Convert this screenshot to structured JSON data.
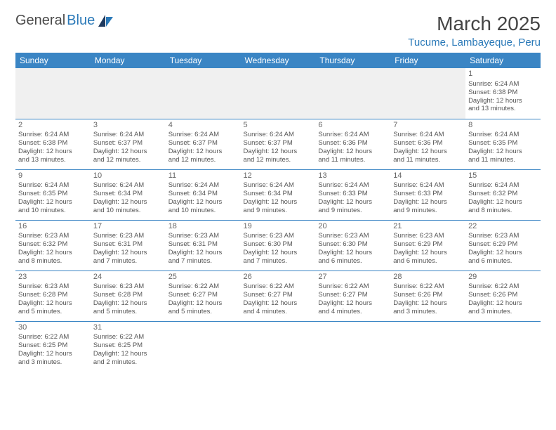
{
  "brand": {
    "name1": "General",
    "name2": "Blue"
  },
  "title": "March 2025",
  "location": "Tucume, Lambayeque, Peru",
  "colors": {
    "header_bg": "#3a85c4",
    "header_text": "#ffffff",
    "accent": "#2a79b8",
    "text": "#555555",
    "daynum": "#666666",
    "blank_bg": "#f0f0f0",
    "rule": "#3a85c4"
  },
  "weekdays": [
    "Sunday",
    "Monday",
    "Tuesday",
    "Wednesday",
    "Thursday",
    "Friday",
    "Saturday"
  ],
  "weeks": [
    [
      null,
      null,
      null,
      null,
      null,
      null,
      {
        "n": "1",
        "sr": "Sunrise: 6:24 AM",
        "ss": "Sunset: 6:38 PM",
        "d1": "Daylight: 12 hours",
        "d2": "and 13 minutes."
      }
    ],
    [
      {
        "n": "2",
        "sr": "Sunrise: 6:24 AM",
        "ss": "Sunset: 6:38 PM",
        "d1": "Daylight: 12 hours",
        "d2": "and 13 minutes."
      },
      {
        "n": "3",
        "sr": "Sunrise: 6:24 AM",
        "ss": "Sunset: 6:37 PM",
        "d1": "Daylight: 12 hours",
        "d2": "and 12 minutes."
      },
      {
        "n": "4",
        "sr": "Sunrise: 6:24 AM",
        "ss": "Sunset: 6:37 PM",
        "d1": "Daylight: 12 hours",
        "d2": "and 12 minutes."
      },
      {
        "n": "5",
        "sr": "Sunrise: 6:24 AM",
        "ss": "Sunset: 6:37 PM",
        "d1": "Daylight: 12 hours",
        "d2": "and 12 minutes."
      },
      {
        "n": "6",
        "sr": "Sunrise: 6:24 AM",
        "ss": "Sunset: 6:36 PM",
        "d1": "Daylight: 12 hours",
        "d2": "and 11 minutes."
      },
      {
        "n": "7",
        "sr": "Sunrise: 6:24 AM",
        "ss": "Sunset: 6:36 PM",
        "d1": "Daylight: 12 hours",
        "d2": "and 11 minutes."
      },
      {
        "n": "8",
        "sr": "Sunrise: 6:24 AM",
        "ss": "Sunset: 6:35 PM",
        "d1": "Daylight: 12 hours",
        "d2": "and 11 minutes."
      }
    ],
    [
      {
        "n": "9",
        "sr": "Sunrise: 6:24 AM",
        "ss": "Sunset: 6:35 PM",
        "d1": "Daylight: 12 hours",
        "d2": "and 10 minutes."
      },
      {
        "n": "10",
        "sr": "Sunrise: 6:24 AM",
        "ss": "Sunset: 6:34 PM",
        "d1": "Daylight: 12 hours",
        "d2": "and 10 minutes."
      },
      {
        "n": "11",
        "sr": "Sunrise: 6:24 AM",
        "ss": "Sunset: 6:34 PM",
        "d1": "Daylight: 12 hours",
        "d2": "and 10 minutes."
      },
      {
        "n": "12",
        "sr": "Sunrise: 6:24 AM",
        "ss": "Sunset: 6:34 PM",
        "d1": "Daylight: 12 hours",
        "d2": "and 9 minutes."
      },
      {
        "n": "13",
        "sr": "Sunrise: 6:24 AM",
        "ss": "Sunset: 6:33 PM",
        "d1": "Daylight: 12 hours",
        "d2": "and 9 minutes."
      },
      {
        "n": "14",
        "sr": "Sunrise: 6:24 AM",
        "ss": "Sunset: 6:33 PM",
        "d1": "Daylight: 12 hours",
        "d2": "and 9 minutes."
      },
      {
        "n": "15",
        "sr": "Sunrise: 6:24 AM",
        "ss": "Sunset: 6:32 PM",
        "d1": "Daylight: 12 hours",
        "d2": "and 8 minutes."
      }
    ],
    [
      {
        "n": "16",
        "sr": "Sunrise: 6:23 AM",
        "ss": "Sunset: 6:32 PM",
        "d1": "Daylight: 12 hours",
        "d2": "and 8 minutes."
      },
      {
        "n": "17",
        "sr": "Sunrise: 6:23 AM",
        "ss": "Sunset: 6:31 PM",
        "d1": "Daylight: 12 hours",
        "d2": "and 7 minutes."
      },
      {
        "n": "18",
        "sr": "Sunrise: 6:23 AM",
        "ss": "Sunset: 6:31 PM",
        "d1": "Daylight: 12 hours",
        "d2": "and 7 minutes."
      },
      {
        "n": "19",
        "sr": "Sunrise: 6:23 AM",
        "ss": "Sunset: 6:30 PM",
        "d1": "Daylight: 12 hours",
        "d2": "and 7 minutes."
      },
      {
        "n": "20",
        "sr": "Sunrise: 6:23 AM",
        "ss": "Sunset: 6:30 PM",
        "d1": "Daylight: 12 hours",
        "d2": "and 6 minutes."
      },
      {
        "n": "21",
        "sr": "Sunrise: 6:23 AM",
        "ss": "Sunset: 6:29 PM",
        "d1": "Daylight: 12 hours",
        "d2": "and 6 minutes."
      },
      {
        "n": "22",
        "sr": "Sunrise: 6:23 AM",
        "ss": "Sunset: 6:29 PM",
        "d1": "Daylight: 12 hours",
        "d2": "and 6 minutes."
      }
    ],
    [
      {
        "n": "23",
        "sr": "Sunrise: 6:23 AM",
        "ss": "Sunset: 6:28 PM",
        "d1": "Daylight: 12 hours",
        "d2": "and 5 minutes."
      },
      {
        "n": "24",
        "sr": "Sunrise: 6:23 AM",
        "ss": "Sunset: 6:28 PM",
        "d1": "Daylight: 12 hours",
        "d2": "and 5 minutes."
      },
      {
        "n": "25",
        "sr": "Sunrise: 6:22 AM",
        "ss": "Sunset: 6:27 PM",
        "d1": "Daylight: 12 hours",
        "d2": "and 5 minutes."
      },
      {
        "n": "26",
        "sr": "Sunrise: 6:22 AM",
        "ss": "Sunset: 6:27 PM",
        "d1": "Daylight: 12 hours",
        "d2": "and 4 minutes."
      },
      {
        "n": "27",
        "sr": "Sunrise: 6:22 AM",
        "ss": "Sunset: 6:27 PM",
        "d1": "Daylight: 12 hours",
        "d2": "and 4 minutes."
      },
      {
        "n": "28",
        "sr": "Sunrise: 6:22 AM",
        "ss": "Sunset: 6:26 PM",
        "d1": "Daylight: 12 hours",
        "d2": "and 3 minutes."
      },
      {
        "n": "29",
        "sr": "Sunrise: 6:22 AM",
        "ss": "Sunset: 6:26 PM",
        "d1": "Daylight: 12 hours",
        "d2": "and 3 minutes."
      }
    ],
    [
      {
        "n": "30",
        "sr": "Sunrise: 6:22 AM",
        "ss": "Sunset: 6:25 PM",
        "d1": "Daylight: 12 hours",
        "d2": "and 3 minutes."
      },
      {
        "n": "31",
        "sr": "Sunrise: 6:22 AM",
        "ss": "Sunset: 6:25 PM",
        "d1": "Daylight: 12 hours",
        "d2": "and 2 minutes."
      },
      null,
      null,
      null,
      null,
      null
    ]
  ]
}
